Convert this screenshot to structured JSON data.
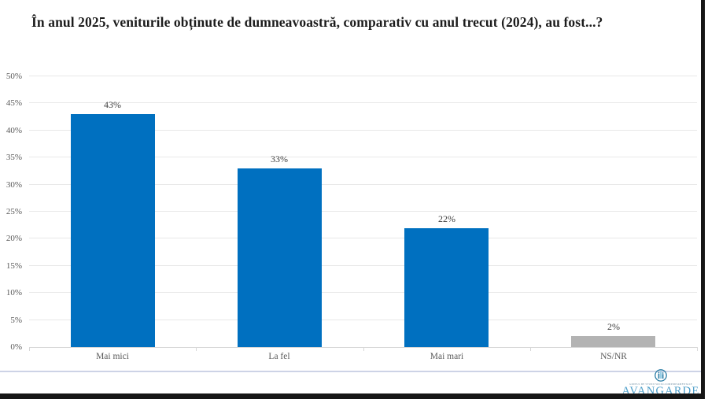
{
  "header": {
    "title": "În anul 2025, veniturile obținute de dumneavoastră, comparativ cu anul trecut (2024), au fost...?"
  },
  "chart_data": {
    "type": "bar",
    "title": "În anul 2025, veniturile obținute de dumneavoastră, comparativ cu anul trecut (2024), au fost...?",
    "categories": [
      "Mai mici",
      "La fel",
      "Mai mari",
      "NS/NR"
    ],
    "values": [
      43,
      33,
      22,
      2
    ],
    "data_labels": [
      "43%",
      "33%",
      "22%",
      "2%"
    ],
    "bar_colors": [
      "#0070c0",
      "#0070c0",
      "#0070c0",
      "#b3b3b3"
    ],
    "xlabel": "",
    "ylabel": "",
    "ylim": [
      0,
      50
    ],
    "y_tick_step": 5,
    "y_tick_labels": [
      "0%",
      "5%",
      "10%",
      "15%",
      "20%",
      "25%",
      "30%",
      "35%",
      "40%",
      "45%",
      "50%"
    ],
    "grid": true,
    "legend_position": "none"
  },
  "footer": {
    "logo_text": "AVANGARDE",
    "logo_subtext": "GRUPUL DE STUDII SOCIO-COMPORTAMENTALE"
  },
  "colors": {
    "bar_primary": "#0070c0",
    "bar_nsnr": "#b3b3b3",
    "gridline": "#e8e8e8",
    "axis_line": "#d7d7d7",
    "tick_label": "#595959",
    "data_label": "#404040",
    "logo_blue": "#4d9ec9",
    "separator": "#cdd3e6",
    "frame_black": "#161616"
  }
}
